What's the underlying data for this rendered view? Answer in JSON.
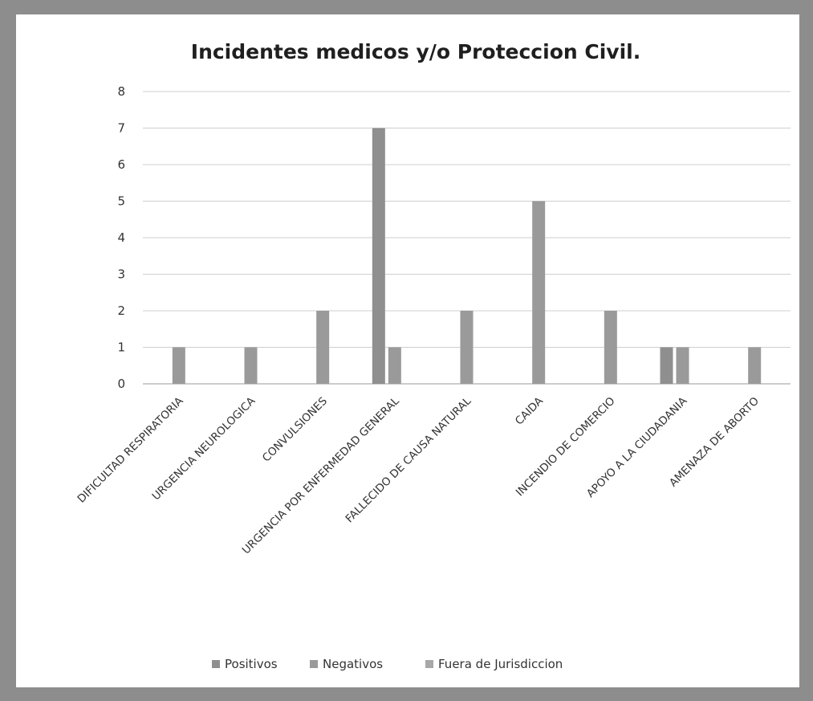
{
  "chart_data": {
    "type": "bar",
    "title": "Incidentes medicos y/o Proteccion Civil.",
    "xlabel": "",
    "ylabel": "",
    "ylim": [
      0,
      8
    ],
    "yticks": [
      0,
      1,
      2,
      3,
      4,
      5,
      6,
      7,
      8
    ],
    "grid": true,
    "legend_position": "bottom",
    "categories": [
      "DIFICULTAD RESPIRATORIA",
      "URGENCIA NEUROLOGICA",
      "CONVULSIONES",
      "URGENCIA POR ENFERMEDAD GENERAL",
      "FALLECIDO DE CAUSA NATURAL",
      "CAIDA",
      "INCENDIO DE COMERCIO",
      "APOYO A LA CIUDADANIA",
      "AMENAZA DE ABORTO"
    ],
    "series": [
      {
        "name": "Positivos",
        "color": "#8f8f8f",
        "values": [
          0,
          0,
          0,
          7,
          0,
          0,
          0,
          1,
          0
        ]
      },
      {
        "name": "Negativos",
        "color": "#9a9a9a",
        "values": [
          1,
          1,
          2,
          1,
          2,
          5,
          2,
          1,
          1
        ]
      },
      {
        "name": "Fuera de Jurisdiccion",
        "color": "#a8a8a8",
        "values": [
          0,
          0,
          0,
          0,
          0,
          0,
          0,
          0,
          0
        ]
      }
    ]
  }
}
